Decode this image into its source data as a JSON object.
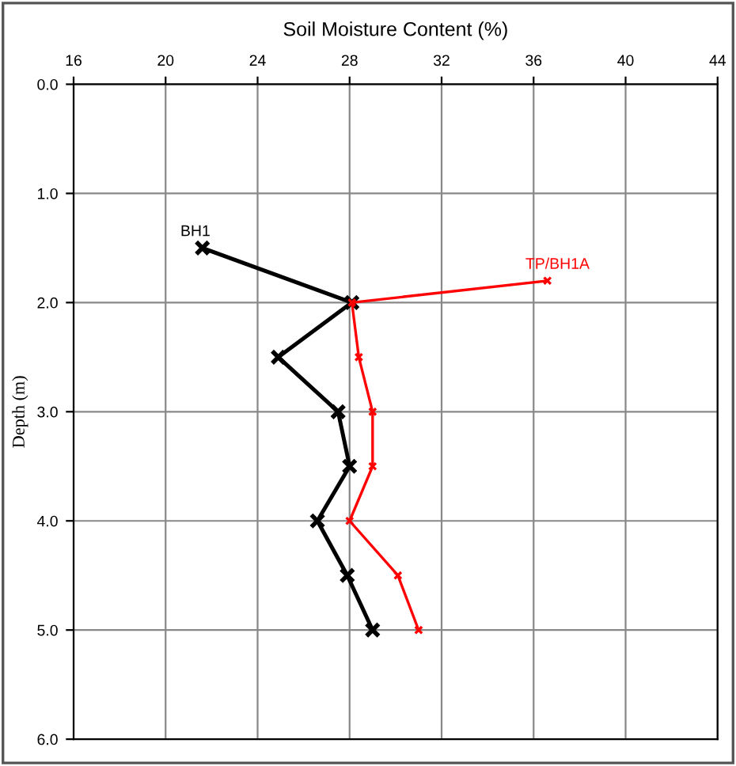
{
  "chart_data": {
    "type": "line",
    "title": "Soil Moisture Content (%)",
    "ylabel": "Depth (m)",
    "xlim": [
      16,
      44
    ],
    "xticks": [
      16,
      20,
      24,
      28,
      32,
      36,
      40,
      44
    ],
    "ylim": [
      6.0,
      0.0
    ],
    "yticks": [
      {
        "value": 0,
        "label": "0.0"
      },
      {
        "value": 1,
        "label": "1.0"
      },
      {
        "value": 2,
        "label": "2.0"
      },
      {
        "value": 3,
        "label": "3.0"
      },
      {
        "value": 4,
        "label": "4.0"
      },
      {
        "value": 5,
        "label": "5.0"
      },
      {
        "value": 6,
        "label": "6.0"
      }
    ],
    "grid": true,
    "marker": "cross",
    "line_style": "solid",
    "series": [
      {
        "name": "BH1",
        "color": "#000000",
        "x": [
          21.6,
          28.1,
          24.9,
          27.5,
          28.0,
          26.6,
          27.9,
          29.0
        ],
        "values": [
          1.5,
          2.0,
          2.5,
          3.0,
          3.5,
          4.0,
          4.5,
          5.0
        ]
      },
      {
        "name": "TP/BH1A",
        "color": "#ff0000",
        "x": [
          36.6,
          28.1,
          28.4,
          29.0,
          29.0,
          28.0,
          30.1,
          31.0
        ],
        "values": [
          1.8,
          2.0,
          2.5,
          3.0,
          3.5,
          4.0,
          4.5,
          5.0
        ]
      }
    ]
  }
}
